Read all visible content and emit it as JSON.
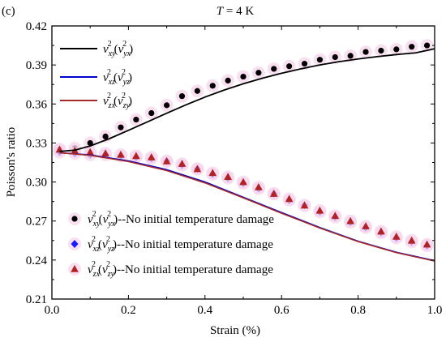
{
  "panel_label": "(c)",
  "title": {
    "var": "T",
    "rest": " = 4 K"
  },
  "chart_data": {
    "type": "line+scatter",
    "title": "T = 4 K",
    "xlabel": "Strain (%)",
    "ylabel": "Poisson's ratio",
    "xlim": [
      0,
      1.0
    ],
    "ylim": [
      0.21,
      0.42
    ],
    "xticks": [
      "0.0",
      "0.2",
      "0.4",
      "0.6",
      "0.8",
      "1.0"
    ],
    "yticks": [
      "0.21",
      "0.24",
      "0.27",
      "0.30",
      "0.33",
      "0.36",
      "0.39",
      "0.42"
    ],
    "grid": false,
    "legends": {
      "lines": "top-left",
      "markers": "bottom-left"
    },
    "line_series": [
      {
        "name": "ν_xy^2(ν_yx^2)",
        "color": "#000000",
        "x": [
          0.02,
          0.06,
          0.1,
          0.15,
          0.2,
          0.25,
          0.3,
          0.35,
          0.4,
          0.45,
          0.5,
          0.55,
          0.6,
          0.65,
          0.7,
          0.75,
          0.8,
          0.85,
          0.9,
          0.95,
          1.0
        ],
        "y": [
          0.3235,
          0.3245,
          0.3277,
          0.3333,
          0.3397,
          0.3463,
          0.3529,
          0.3593,
          0.3653,
          0.3707,
          0.3755,
          0.3798,
          0.3836,
          0.387,
          0.39,
          0.3925,
          0.3946,
          0.3964,
          0.398,
          0.3993,
          0.4025
        ]
      },
      {
        "name": "ν_xz^2(ν_yz^2)",
        "color": "#0000cc",
        "x": [
          0.02,
          0.1,
          0.2,
          0.3,
          0.4,
          0.5,
          0.6,
          0.7,
          0.8,
          0.9,
          1.0
        ],
        "y": [
          0.3225,
          0.3208,
          0.3162,
          0.3095,
          0.3,
          0.2883,
          0.2765,
          0.265,
          0.2545,
          0.246,
          0.2395
        ]
      },
      {
        "name": "ν_zx^2(ν_zy^2)",
        "color": "#a52a2a",
        "x": [
          0.02,
          0.1,
          0.2,
          0.3,
          0.4,
          0.5,
          0.6,
          0.7,
          0.8,
          0.9,
          1.0
        ],
        "y": [
          0.3225,
          0.3205,
          0.3157,
          0.3088,
          0.2993,
          0.2878,
          0.276,
          0.2646,
          0.2542,
          0.2457,
          0.2392
        ]
      }
    ],
    "marker_series": [
      {
        "name": "ν_xy^2(ν_yx^2)--No initial temperature damage",
        "marker": "circle",
        "color": "#000000",
        "x": [
          0.02,
          0.06,
          0.1,
          0.14,
          0.18,
          0.22,
          0.26,
          0.3,
          0.34,
          0.38,
          0.42,
          0.46,
          0.5,
          0.54,
          0.58,
          0.62,
          0.66,
          0.7,
          0.74,
          0.78,
          0.82,
          0.86,
          0.9,
          0.94,
          0.98
        ],
        "y": [
          0.325,
          0.326,
          0.33,
          0.335,
          0.342,
          0.348,
          0.353,
          0.359,
          0.366,
          0.37,
          0.374,
          0.378,
          0.381,
          0.384,
          0.387,
          0.389,
          0.391,
          0.394,
          0.396,
          0.397,
          0.4,
          0.401,
          0.402,
          0.404,
          0.405
        ]
      },
      {
        "name": "ν_xz^2(ν_yz^2)--No initial temperature damage",
        "marker": "diamond",
        "color": "#1a1aff",
        "x": [
          0.02,
          0.06,
          0.1,
          0.14,
          0.18,
          0.22,
          0.26,
          0.3,
          0.34,
          0.38,
          0.42,
          0.46,
          0.5,
          0.54,
          0.58,
          0.62,
          0.66,
          0.7,
          0.74,
          0.78,
          0.82,
          0.86,
          0.9,
          0.94,
          0.98
        ],
        "y": [
          0.323,
          0.322,
          0.321,
          0.321,
          0.32,
          0.319,
          0.318,
          0.316,
          0.313,
          0.31,
          0.306,
          0.303,
          0.299,
          0.295,
          0.291,
          0.286,
          0.282,
          0.277,
          0.273,
          0.269,
          0.265,
          0.261,
          0.257,
          0.254,
          0.251
        ]
      },
      {
        "name": "ν_zx^2(ν_zy^2)--No initial temperature damage",
        "marker": "triangle",
        "color": "#b22222",
        "x": [
          0.02,
          0.06,
          0.1,
          0.14,
          0.18,
          0.22,
          0.26,
          0.3,
          0.34,
          0.38,
          0.42,
          0.46,
          0.5,
          0.54,
          0.58,
          0.62,
          0.66,
          0.7,
          0.74,
          0.78,
          0.82,
          0.86,
          0.9,
          0.94,
          0.98
        ],
        "y": [
          0.325,
          0.324,
          0.323,
          0.322,
          0.321,
          0.32,
          0.319,
          0.316,
          0.314,
          0.31,
          0.307,
          0.304,
          0.3,
          0.296,
          0.291,
          0.287,
          0.282,
          0.278,
          0.274,
          0.27,
          0.266,
          0.262,
          0.258,
          0.255,
          0.252
        ]
      }
    ]
  },
  "legend_text": {
    "l1": {
      "a": "ν",
      "a_sub": "xy",
      "a_sup": "2",
      "b": "ν",
      "b_sub": "yx",
      "b_sup": "2"
    },
    "l2": {
      "a": "ν",
      "a_sub": "xz",
      "a_sup": "2",
      "b": "ν",
      "b_sub": "yz",
      "b_sup": "2"
    },
    "l3": {
      "a": "ν",
      "a_sub": "zx",
      "a_sup": "2",
      "b": "ν",
      "b_sub": "zy",
      "b_sup": "2"
    },
    "m1_suffix": "--No initial temperature damage",
    "m2_suffix": "--No initial temperature damage",
    "m3_suffix": "--No initial temperature damage"
  },
  "colors": {
    "marker_halo": "#f7d6ec"
  }
}
